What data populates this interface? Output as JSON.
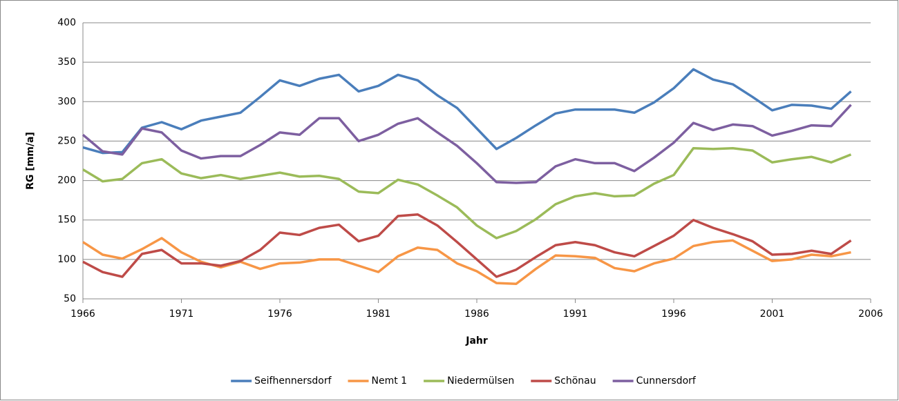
{
  "chart_data": {
    "type": "line",
    "x_label": "Jahr",
    "y_label": "RG [mm/a]",
    "x": [
      1966,
      1967,
      1968,
      1969,
      1970,
      1971,
      1972,
      1973,
      1974,
      1975,
      1976,
      1977,
      1978,
      1979,
      1980,
      1981,
      1982,
      1983,
      1984,
      1985,
      1986,
      1987,
      1988,
      1989,
      1990,
      1991,
      1992,
      1993,
      1994,
      1995,
      1996,
      1997,
      1998,
      1999,
      2000,
      2001,
      2002,
      2003,
      2004,
      2005
    ],
    "series": [
      {
        "name": "Seifhennersdorf",
        "color": "#4a7ebb",
        "values": [
          242,
          235,
          236,
          267,
          274,
          265,
          276,
          281,
          286,
          306,
          327,
          320,
          329,
          334,
          313,
          320,
          334,
          327,
          308,
          292,
          266,
          240,
          254,
          270,
          285,
          290,
          290,
          290,
          286,
          299,
          317,
          341,
          328,
          322,
          306,
          289,
          296,
          295,
          291,
          313
        ]
      },
      {
        "name": "Nemt 1",
        "color": "#f79646",
        "values": [
          122,
          106,
          101,
          113,
          127,
          109,
          97,
          90,
          97,
          88,
          95,
          96,
          100,
          100,
          92,
          84,
          104,
          115,
          112,
          95,
          85,
          70,
          69,
          88,
          105,
          104,
          102,
          89,
          85,
          95,
          101,
          117,
          122,
          124,
          111,
          98,
          100,
          106,
          104,
          109
        ]
      },
      {
        "name": "Niedermülsen",
        "color": "#9bbb59",
        "values": [
          214,
          199,
          202,
          222,
          227,
          209,
          203,
          207,
          202,
          206,
          210,
          205,
          206,
          202,
          186,
          184,
          201,
          195,
          181,
          166,
          143,
          127,
          136,
          151,
          170,
          180,
          184,
          180,
          181,
          196,
          207,
          241,
          240,
          241,
          238,
          223,
          227,
          230,
          223,
          233
        ]
      },
      {
        "name": "Schönau",
        "color": "#be4b48",
        "values": [
          97,
          84,
          78,
          107,
          112,
          95,
          95,
          92,
          98,
          112,
          134,
          131,
          140,
          144,
          123,
          130,
          155,
          157,
          143,
          122,
          100,
          78,
          87,
          103,
          118,
          122,
          118,
          109,
          104,
          117,
          130,
          150,
          140,
          132,
          123,
          106,
          107,
          111,
          107,
          124
        ]
      },
      {
        "name": "Cunnersdorf",
        "color": "#7d5fa0",
        "values": [
          258,
          237,
          233,
          266,
          261,
          238,
          228,
          231,
          231,
          245,
          261,
          258,
          279,
          279,
          250,
          258,
          272,
          279,
          261,
          244,
          222,
          198,
          197,
          198,
          218,
          227,
          222,
          222,
          212,
          229,
          248,
          273,
          264,
          271,
          269,
          257,
          263,
          270,
          269,
          296
        ]
      }
    ],
    "xlim": [
      1966,
      2006
    ],
    "xticks": [
      1966,
      1971,
      1976,
      1981,
      1986,
      1991,
      1996,
      2001,
      2006
    ],
    "ylim": [
      50,
      400
    ],
    "yticks": [
      50,
      100,
      150,
      200,
      250,
      300,
      350,
      400
    ],
    "grid": true,
    "legend": "bottom"
  }
}
